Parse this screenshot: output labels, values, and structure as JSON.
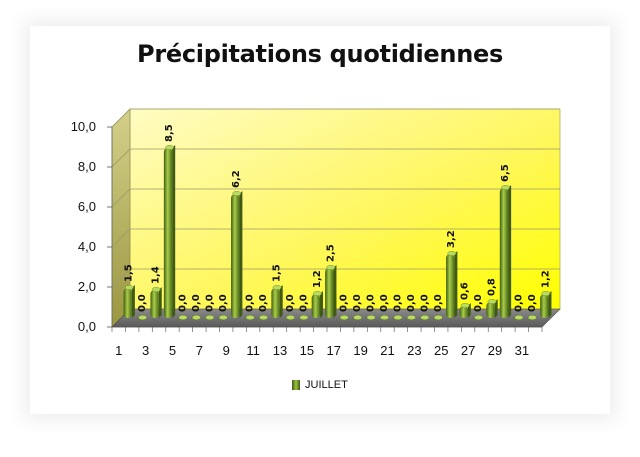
{
  "chart_data": {
    "type": "bar",
    "title": "Précipitations quotidiennes",
    "series": [
      {
        "name": "JUILLET",
        "values": [
          1.5,
          0.0,
          1.4,
          8.5,
          0.0,
          0.0,
          0.0,
          0.0,
          6.2,
          0.0,
          0.0,
          1.5,
          0.0,
          0.0,
          1.2,
          2.5,
          0.0,
          0.0,
          0.0,
          0.0,
          0.0,
          0.0,
          0.0,
          0.0,
          3.2,
          0.6,
          0.0,
          0.8,
          6.5,
          0.0,
          0.0,
          1.2
        ],
        "labels": [
          "1,5",
          "0,0",
          "1,4",
          "8,5",
          "0,0",
          "0,0",
          "0,0",
          "0,0",
          "6,2",
          "0,0",
          "0,0",
          "1,5",
          "0,0",
          "0,0",
          "1,2",
          "2,5",
          "0,0",
          "0,0",
          "0,0",
          "0,0",
          "0,0",
          "0,0",
          "0,0",
          "0,0",
          "3,2",
          "0,6",
          "0,0",
          "0,8",
          "6,5",
          "0,0",
          "0,0",
          "1,2"
        ]
      }
    ],
    "x": [
      1,
      2,
      3,
      4,
      5,
      6,
      7,
      8,
      9,
      10,
      11,
      12,
      13,
      14,
      15,
      16,
      17,
      18,
      19,
      20,
      21,
      22,
      23,
      24,
      25,
      26,
      27,
      28,
      29,
      30,
      31,
      32
    ],
    "x_tick_labels": [
      "1",
      "3",
      "5",
      "7",
      "9",
      "11",
      "13",
      "15",
      "17",
      "19",
      "21",
      "23",
      "25",
      "27",
      "29",
      "31"
    ],
    "y_tick_labels": [
      "0,0",
      "2,0",
      "4,0",
      "6,0",
      "8,0",
      "10,0"
    ],
    "ylim": [
      0,
      10
    ],
    "grid": true,
    "legend_position": "bottom",
    "colors": {
      "bar": "#6f9424",
      "bar_light": "#b5d655",
      "plot_bg_top": "#fffbb0",
      "plot_bg_bottom": "#ffff00",
      "wall": "#b8b45a",
      "floor": "#6e6e6e"
    }
  }
}
